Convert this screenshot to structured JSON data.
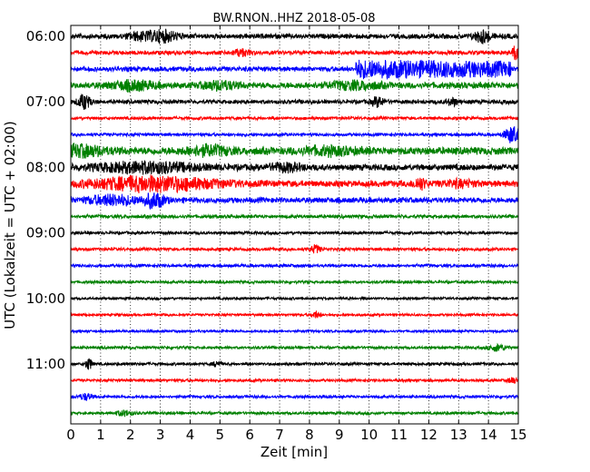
{
  "chart_data": {
    "type": "line",
    "title": "BW.RNON..HHZ 2018-05-08",
    "xlabel": "Zeit  [min]",
    "ylabel": "UTC (Lokalzeit = UTC + 02:00)",
    "xlim": [
      0,
      15
    ],
    "x_ticks": [
      "0",
      "1",
      "2",
      "3",
      "4",
      "5",
      "6",
      "7",
      "8",
      "9",
      "10",
      "11",
      "12",
      "13",
      "14",
      "15"
    ],
    "y_ticks": [
      "06:00",
      "07:00",
      "08:00",
      "09:00",
      "10:00",
      "11:00"
    ],
    "grid": "vertical dotted",
    "line_colors": [
      "#000000",
      "#ff0000",
      "#0000ff",
      "#008000"
    ],
    "traces": [
      {
        "amp": 0.35,
        "events": [
          {
            "t": 3.1,
            "a": 0.8,
            "w": 0.35
          },
          {
            "t": 13.8,
            "a": 0.9,
            "w": 0.2
          },
          {
            "t": 2.3,
            "a": 0.5,
            "w": 0.3
          }
        ]
      },
      {
        "amp": 0.3,
        "events": [
          {
            "t": 14.9,
            "a": 1.0,
            "w": 0.08
          },
          {
            "t": 5.7,
            "a": 0.45,
            "w": 0.2
          }
        ]
      },
      {
        "amp": 0.35,
        "events": [
          {
            "t": 9.6,
            "a": 1.2,
            "w": 0.4,
            "tail": 5.2
          }
        ]
      },
      {
        "amp": 0.45,
        "events": [
          {
            "t": 2.1,
            "a": 0.6,
            "w": 0.5
          },
          {
            "t": 5.0,
            "a": 0.55,
            "w": 0.4
          },
          {
            "t": 9.5,
            "a": 0.5,
            "w": 0.6
          }
        ]
      },
      {
        "amp": 0.3,
        "events": [
          {
            "t": 0.45,
            "a": 1.1,
            "w": 0.15
          },
          {
            "t": 10.3,
            "a": 0.7,
            "w": 0.15
          },
          {
            "t": 12.8,
            "a": 0.55,
            "w": 0.12
          }
        ]
      },
      {
        "amp": 0.22,
        "events": []
      },
      {
        "amp": 0.22,
        "events": [
          {
            "t": 14.8,
            "a": 1.3,
            "w": 0.18
          }
        ]
      },
      {
        "amp": 0.55,
        "events": [
          {
            "t": 0.3,
            "a": 0.7,
            "w": 0.6
          },
          {
            "t": 4.6,
            "a": 0.6,
            "w": 0.5
          },
          {
            "t": 8.6,
            "a": 0.45,
            "w": 0.6
          }
        ]
      },
      {
        "amp": 0.45,
        "events": [
          {
            "t": 2.5,
            "a": 0.7,
            "w": 1.2
          },
          {
            "t": 7.2,
            "a": 0.5,
            "w": 0.4
          }
        ]
      },
      {
        "amp": 0.45,
        "events": [
          {
            "t": 2.8,
            "a": 1.0,
            "w": 1.5
          },
          {
            "t": 11.7,
            "a": 0.8,
            "w": 0.15
          },
          {
            "t": 13.0,
            "a": 0.4,
            "w": 0.4
          }
        ]
      },
      {
        "amp": 0.4,
        "events": [
          {
            "t": 1.4,
            "a": 0.7,
            "w": 0.6
          },
          {
            "t": 2.8,
            "a": 1.0,
            "w": 0.25
          }
        ]
      },
      {
        "amp": 0.25,
        "events": []
      },
      {
        "amp": 0.22,
        "events": []
      },
      {
        "amp": 0.22,
        "events": [
          {
            "t": 8.2,
            "a": 0.6,
            "w": 0.12
          }
        ]
      },
      {
        "amp": 0.22,
        "events": []
      },
      {
        "amp": 0.2,
        "events": []
      },
      {
        "amp": 0.18,
        "events": []
      },
      {
        "amp": 0.18,
        "events": [
          {
            "t": 8.2,
            "a": 0.5,
            "w": 0.1
          }
        ]
      },
      {
        "amp": 0.18,
        "events": []
      },
      {
        "amp": 0.2,
        "events": [
          {
            "t": 14.3,
            "a": 0.5,
            "w": 0.2
          }
        ]
      },
      {
        "amp": 0.2,
        "events": [
          {
            "t": 0.6,
            "a": 0.9,
            "w": 0.08
          },
          {
            "t": 4.9,
            "a": 0.4,
            "w": 0.1
          }
        ]
      },
      {
        "amp": 0.2,
        "events": [
          {
            "t": 14.8,
            "a": 0.5,
            "w": 0.1
          }
        ]
      },
      {
        "amp": 0.2,
        "events": [
          {
            "t": 0.5,
            "a": 0.5,
            "w": 0.15
          }
        ]
      },
      {
        "amp": 0.2,
        "events": [
          {
            "t": 1.8,
            "a": 0.4,
            "w": 0.2
          }
        ]
      }
    ]
  }
}
